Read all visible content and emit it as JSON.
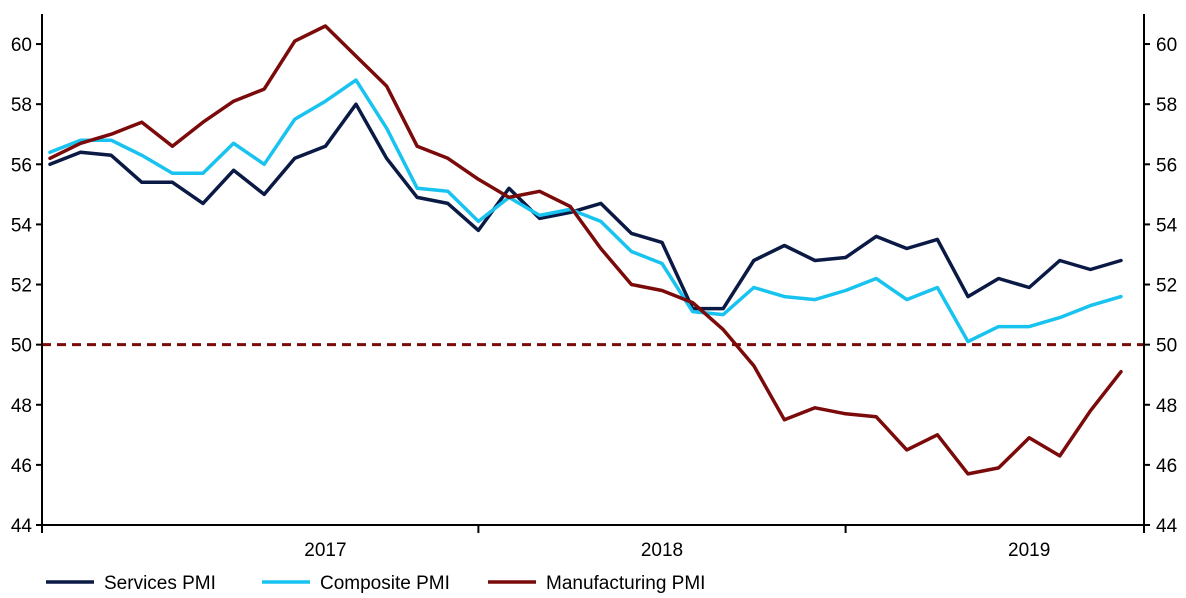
{
  "chart_data": {
    "type": "line",
    "title": "",
    "xlabel": "",
    "ylabel": "",
    "ylim": [
      44,
      61
    ],
    "yticks": [
      44,
      46,
      48,
      50,
      52,
      54,
      56,
      58,
      60
    ],
    "secondary_y": true,
    "grid": false,
    "x": [
      "2016-10",
      "2016-11",
      "2016-12",
      "2017-01",
      "2017-02",
      "2017-03",
      "2017-04",
      "2017-05",
      "2017-06",
      "2017-07",
      "2017-08",
      "2017-09",
      "2017-10",
      "2017-11",
      "2017-12",
      "2018-01",
      "2018-02",
      "2018-03",
      "2018-04",
      "2018-05",
      "2018-06",
      "2018-07",
      "2018-08",
      "2018-09",
      "2018-10",
      "2018-11",
      "2018-12",
      "2019-01",
      "2019-02",
      "2019-03",
      "2019-04",
      "2019-05",
      "2019-06",
      "2019-07",
      "2019-08",
      "2019-09",
      "2019-10"
    ],
    "year_labels": [
      {
        "label": "2017",
        "month": "2017-07"
      },
      {
        "label": "2018",
        "month": "2018-06"
      },
      {
        "label": "2019",
        "month": "2019-06"
      }
    ],
    "x_ticks": [
      "2016-09",
      "2017-12",
      "2018-12",
      "2019-12"
    ],
    "series": [
      {
        "name": "Services PMI",
        "color": "#0b1a45",
        "values": [
          56.0,
          56.4,
          56.3,
          55.4,
          55.4,
          54.7,
          55.8,
          55.0,
          56.2,
          56.6,
          58.0,
          56.2,
          54.9,
          54.7,
          53.8,
          55.2,
          54.2,
          54.4,
          54.7,
          53.7,
          53.4,
          51.2,
          51.2,
          52.8,
          53.3,
          52.8,
          52.9,
          53.6,
          53.2,
          53.5,
          51.6,
          52.2,
          51.9,
          52.8,
          52.5,
          52.8,
          null
        ]
      },
      {
        "name": "Composite PMI",
        "color": "#19c3f0",
        "values": [
          56.4,
          56.8,
          56.8,
          56.3,
          55.7,
          55.7,
          56.7,
          56.0,
          57.5,
          58.1,
          58.8,
          57.2,
          55.2,
          55.1,
          54.1,
          54.9,
          54.3,
          54.5,
          54.1,
          53.1,
          52.7,
          51.1,
          51.0,
          51.9,
          51.6,
          51.5,
          51.8,
          52.2,
          51.5,
          51.9,
          50.1,
          50.6,
          50.6,
          50.9,
          51.3,
          51.6,
          null
        ]
      },
      {
        "name": "Manufacturing PMI",
        "color": "#7b0a0a",
        "values": [
          56.2,
          56.7,
          57.0,
          57.4,
          56.6,
          57.4,
          58.1,
          58.5,
          60.1,
          60.6,
          59.6,
          58.6,
          56.6,
          56.2,
          55.5,
          54.9,
          55.1,
          54.6,
          53.2,
          52.0,
          51.8,
          51.4,
          50.5,
          49.3,
          47.5,
          47.9,
          47.7,
          47.6,
          46.5,
          47.0,
          45.7,
          45.9,
          46.9,
          46.3,
          47.8,
          49.1,
          null
        ]
      }
    ],
    "reference_line": {
      "value": 50,
      "style": "dashed",
      "color": "#7b0a0a"
    },
    "legend": {
      "placement": "bottom",
      "items": [
        {
          "label": "Services PMI",
          "color": "#0b1a45"
        },
        {
          "label": "Composite PMI",
          "color": "#19c3f0"
        },
        {
          "label": "Manufacturing PMI",
          "color": "#7b0a0a"
        }
      ]
    }
  }
}
